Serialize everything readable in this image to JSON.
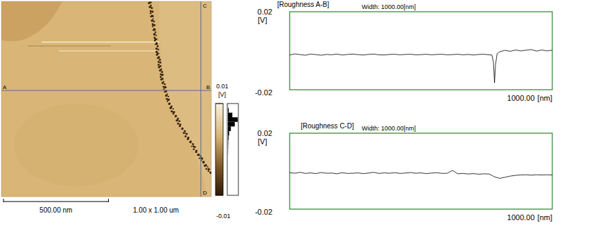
{
  "image": {
    "type": "afm_image",
    "size": {
      "value": 1000,
      "label": "1.00 x 1.00 um"
    },
    "scale_bar": {
      "value": 500,
      "label": "500.00 nm"
    },
    "profiles": [
      {
        "start": "A",
        "end": "B",
        "y": 456
      },
      {
        "start": "C",
        "end": "D",
        "x": 950
      }
    ],
    "colorbar": {
      "range": [
        -0.01,
        0.01
      ],
      "ticks": [
        0.01,
        -0.01
      ],
      "unit": "[V]",
      "histogram": {
        "bins": [
          -0.01,
          -0.009,
          -0.008,
          -0.007,
          -0.006,
          -0.005,
          -0.004,
          -0.003,
          -0.002,
          -0.001,
          0,
          0.001,
          0.002,
          0.003,
          0.004,
          0.005,
          0.006,
          0.007,
          0.008,
          0.009,
          0.01
        ],
        "counts": [
          0,
          0,
          0,
          0,
          0,
          0,
          0,
          0,
          0,
          1,
          2,
          3,
          6,
          12,
          30,
          70,
          100,
          45,
          8,
          1
        ]
      }
    }
  },
  "chart_data": [
    {
      "type": "line",
      "title": "[Roughness A-B]",
      "subtitle": "Width: 1000.00[nm]",
      "y_label": "[V]",
      "x_label": "[nm]",
      "x": [
        0,
        20,
        40,
        60,
        80,
        100,
        120,
        140,
        160,
        180,
        200,
        220,
        240,
        260,
        280,
        300,
        320,
        340,
        360,
        380,
        400,
        420,
        440,
        460,
        480,
        500,
        520,
        540,
        560,
        580,
        600,
        620,
        640,
        660,
        680,
        700,
        720,
        740,
        760,
        770,
        776,
        780,
        784,
        790,
        800,
        820,
        840,
        860,
        880,
        900,
        920,
        940,
        960,
        980,
        1000
      ],
      "series": [
        {
          "color": "#000000",
          "values": [
            -0.0022,
            -0.0016,
            -0.002,
            -0.0023,
            -0.0017,
            -0.002,
            -0.0023,
            -0.0019,
            -0.0021,
            -0.0017,
            -0.0022,
            -0.0019,
            -0.0017,
            -0.002,
            -0.0022,
            -0.0019,
            -0.0017,
            -0.0021,
            -0.0022,
            -0.0019,
            -0.0018,
            -0.0021,
            -0.0019,
            -0.0018,
            -0.0021,
            -0.002,
            -0.0018,
            -0.0021,
            -0.0019,
            -0.0018,
            -0.0021,
            -0.002,
            -0.0018,
            -0.0021,
            -0.0019,
            -0.0022,
            -0.0019,
            -0.0018,
            -0.0021,
            -0.0022,
            -0.006,
            -0.0165,
            -0.007,
            -0.0015,
            -0.0005,
            0.0002,
            -0.0003,
            0.0004,
            -0.0001,
            0.0003,
            0.0006,
            -0.0002,
            0.0004,
            -0.0001,
            0.0003
          ]
        }
      ],
      "xlim": [
        0,
        1000
      ],
      "ylim": [
        -0.02,
        0.02
      ],
      "xticks": [
        {
          "value": 1000,
          "label": "1000.00"
        }
      ],
      "yticks": [
        0.02,
        -0.02
      ],
      "grid": false
    },
    {
      "type": "line",
      "title": "[Roughness C-D]",
      "subtitle": "Width: 1000.00[nm]",
      "y_label": "[V]",
      "x_label": "[nm]",
      "x": [
        0,
        20,
        40,
        60,
        80,
        100,
        120,
        140,
        160,
        180,
        200,
        220,
        240,
        260,
        280,
        300,
        320,
        340,
        360,
        380,
        400,
        420,
        440,
        460,
        480,
        500,
        520,
        540,
        560,
        580,
        600,
        620,
        640,
        660,
        680,
        700,
        720,
        740,
        760,
        780,
        800,
        820,
        840,
        860,
        880,
        900,
        920,
        940,
        960,
        980,
        1000
      ],
      "series": [
        {
          "color": "#000000",
          "values": [
            -0.0008,
            -0.0011,
            -0.0006,
            -0.0012,
            -0.0009,
            -0.0013,
            -0.0007,
            -0.0011,
            -0.001,
            -0.0014,
            -0.0008,
            -0.0012,
            -0.0011,
            -0.0009,
            -0.0013,
            -0.001,
            -0.0006,
            -0.0012,
            -0.0009,
            -0.0011,
            -0.0008,
            -0.0012,
            -0.001,
            -0.0007,
            -0.0011,
            -0.0009,
            -0.0013,
            -0.001,
            -0.0008,
            -0.0012,
            -0.0011,
            0.0004,
            -0.0014,
            -0.0012,
            -0.0015,
            -0.0013,
            -0.0016,
            -0.0014,
            -0.0015,
            -0.003,
            -0.0038,
            -0.0032,
            -0.0026,
            -0.0022,
            -0.002,
            -0.0019,
            -0.0021,
            -0.0019,
            -0.002,
            -0.0019,
            -0.002
          ]
        }
      ],
      "xlim": [
        0,
        1000
      ],
      "ylim": [
        -0.02,
        0.02
      ],
      "xticks": [
        {
          "value": 1000,
          "label": "1000.00"
        }
      ],
      "yticks": [
        0.02,
        -0.02
      ],
      "grid": false
    }
  ]
}
